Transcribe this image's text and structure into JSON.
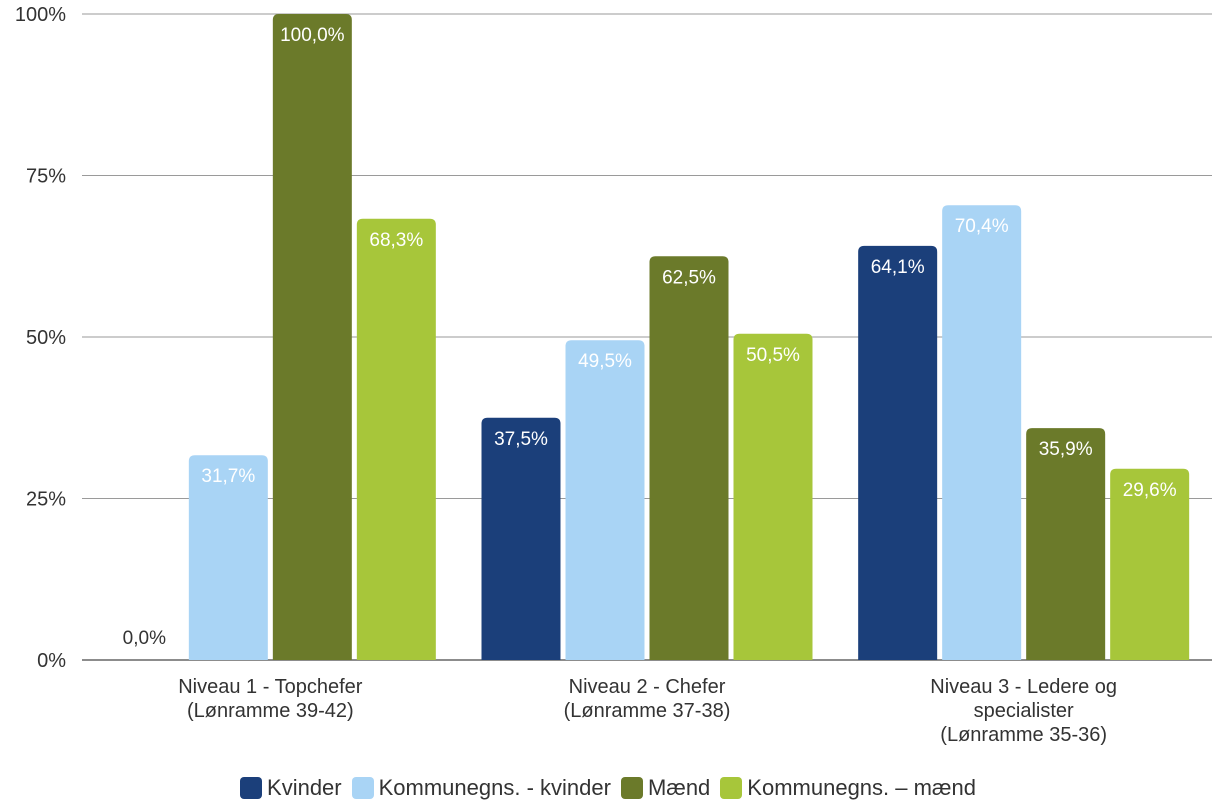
{
  "chart_data": {
    "type": "bar",
    "categories": [
      [
        "Niveau 1 - Topchefer",
        "(Lønramme 39-42)"
      ],
      [
        "Niveau 2 - Chefer",
        "(Lønramme 37-38)"
      ],
      [
        "Niveau 3 - Ledere og",
        "specialister",
        "(Lønramme 35-36)"
      ]
    ],
    "series": [
      {
        "name": "Kvinder",
        "color": "#1b3f7a",
        "label_color": "#ffffff",
        "values": [
          0.0,
          37.5,
          64.1
        ],
        "labels": [
          "0,0%",
          "37,5%",
          "64,1%"
        ]
      },
      {
        "name": "Kommunegns. - kvinder",
        "color": "#a9d4f5",
        "label_color": "#ffffff",
        "values": [
          31.7,
          49.5,
          70.4
        ],
        "labels": [
          "31,7%",
          "49,5%",
          "70,4%"
        ]
      },
      {
        "name": "Mænd",
        "color": "#6b7a2a",
        "label_color": "#ffffff",
        "values": [
          100.0,
          62.5,
          35.9
        ],
        "labels": [
          "100,0%",
          "62,5%",
          "35,9%"
        ]
      },
      {
        "name": "Kommunegns. – mænd",
        "color": "#a7c63a",
        "label_color": "#ffffff",
        "values": [
          68.3,
          50.5,
          29.6
        ],
        "labels": [
          "68,3%",
          "50,5%",
          "29,6%"
        ]
      }
    ],
    "yticks": [
      {
        "value": 0,
        "label": "0%"
      },
      {
        "value": 25,
        "label": "25%"
      },
      {
        "value": 50,
        "label": "50%"
      },
      {
        "value": 75,
        "label": "75%"
      },
      {
        "value": 100,
        "label": "100%"
      }
    ],
    "ylim": [
      0,
      100
    ],
    "grid": true,
    "legend_position": "bottom",
    "title": "",
    "xlabel": "",
    "ylabel": ""
  }
}
